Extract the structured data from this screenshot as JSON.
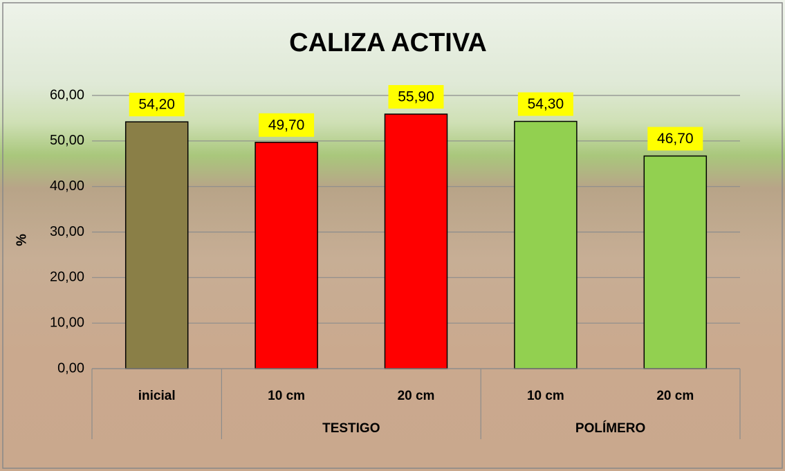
{
  "chart_data": {
    "type": "bar",
    "title": "CALIZA ACTIVA",
    "y_label": "%",
    "categories": [
      "inicial",
      "10 cm",
      "20 cm",
      "10 cm",
      "20 cm"
    ],
    "groups": [
      {
        "name": null,
        "size": 1
      },
      {
        "name": "TESTIGO",
        "size": 2
      },
      {
        "name": "POLÍMERO",
        "size": 2
      }
    ],
    "values": [
      54.2,
      49.7,
      55.9,
      54.3,
      46.7
    ],
    "value_labels": [
      "54,20",
      "49,70",
      "55,90",
      "54,30",
      "46,70"
    ],
    "colors": [
      "#8a7f47",
      "#ff0000",
      "#ff0000",
      "#92d050",
      "#92d050"
    ],
    "ylim": [
      0,
      60
    ],
    "yticks": [
      {
        "value": 0,
        "label": "0,00"
      },
      {
        "value": 10,
        "label": "10,00"
      },
      {
        "value": 20,
        "label": "20,00"
      },
      {
        "value": 30,
        "label": "30,00"
      },
      {
        "value": 40,
        "label": "40,00"
      },
      {
        "value": 50,
        "label": "50,00"
      },
      {
        "value": 60,
        "label": "60,00"
      }
    ],
    "grid": true
  }
}
